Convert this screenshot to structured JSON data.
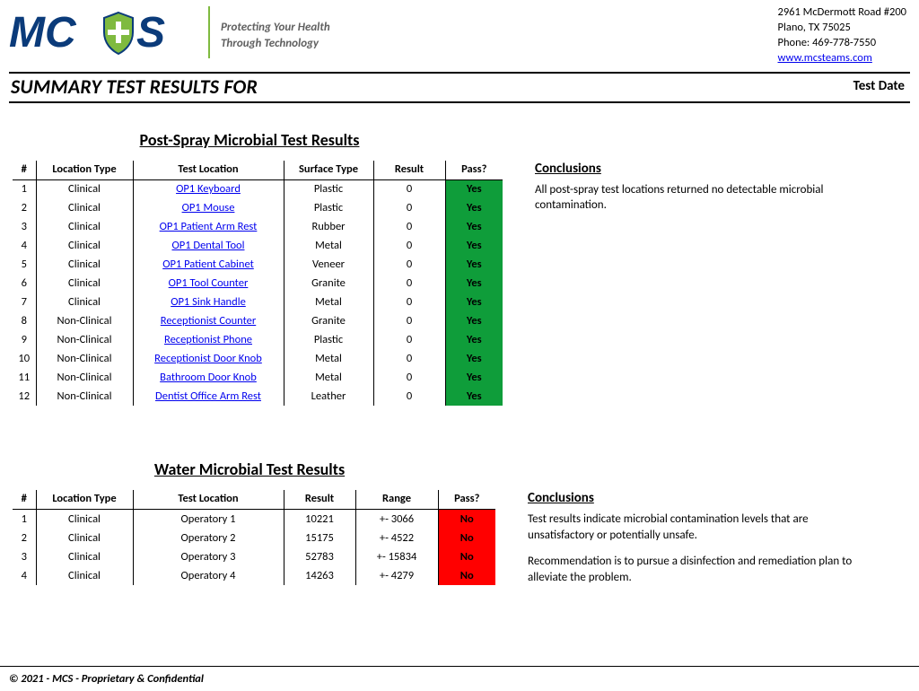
{
  "header": {
    "tagline_line1": "Protecting Your Health",
    "tagline_line2": "Through Technology",
    "address_line1": "2961 McDermott Road  #200",
    "address_line2": "Plano, TX  75025",
    "phone": "Phone: 469-778-7550",
    "website_text": "www.mcsteams.com",
    "website_href": "http://www.mcsteams.com",
    "logo": {
      "text_left": "MC",
      "text_right": "S",
      "main_color": "#0b3b7a",
      "shield_fill": "#7fba3f",
      "cross_color": "#ffffff",
      "rule_color": "#7fba3f"
    }
  },
  "title_bar": {
    "title": "SUMMARY TEST RESULTS FOR",
    "date_label": "Test Date"
  },
  "post_spray": {
    "title": "Post-Spray Microbial Test Results",
    "columns": {
      "n": "#",
      "ltype": "Location Type",
      "loc": "Test Location",
      "surf": "Surface Type",
      "res": "Result",
      "pass": "Pass?"
    },
    "pass_colors": {
      "yes": "#0f9d3a",
      "no": "#ff0000"
    },
    "rows": [
      {
        "n": "1",
        "ltype": "Clinical",
        "loc": "OP1 Keyboard",
        "surf": "Plastic",
        "res": "0",
        "pass": "Yes"
      },
      {
        "n": "2",
        "ltype": "Clinical",
        "loc": "OP1 Mouse",
        "surf": "Plastic",
        "res": "0",
        "pass": "Yes"
      },
      {
        "n": "3",
        "ltype": "Clinical",
        "loc": "OP1 Patient Arm Rest",
        "surf": "Rubber",
        "res": "0",
        "pass": "Yes"
      },
      {
        "n": "4",
        "ltype": "Clinical",
        "loc": "OP1 Dental Tool",
        "surf": "Metal",
        "res": "0",
        "pass": "Yes"
      },
      {
        "n": "5",
        "ltype": "Clinical",
        "loc": "OP1 Patient Cabinet",
        "surf": "Veneer",
        "res": "0",
        "pass": "Yes"
      },
      {
        "n": "6",
        "ltype": "Clinical",
        "loc": "OP1 Tool Counter",
        "surf": "Granite",
        "res": "0",
        "pass": "Yes"
      },
      {
        "n": "7",
        "ltype": "Clinical",
        "loc": "OP1 Sink Handle",
        "surf": "Metal",
        "res": "0",
        "pass": "Yes"
      },
      {
        "n": "8",
        "ltype": "Non-Clinical",
        "loc": "Receptionist Counter",
        "surf": "Granite",
        "res": "0",
        "pass": "Yes"
      },
      {
        "n": "9",
        "ltype": "Non-Clinical",
        "loc": "Receptionist Phone",
        "surf": "Plastic",
        "res": "0",
        "pass": "Yes"
      },
      {
        "n": "10",
        "ltype": "Non-Clinical",
        "loc": "Receptionist Door Knob",
        "surf": "Metal",
        "res": "0",
        "pass": "Yes"
      },
      {
        "n": "11",
        "ltype": "Non-Clinical",
        "loc": "Bathroom Door Knob",
        "surf": "Metal",
        "res": "0",
        "pass": "Yes"
      },
      {
        "n": "12",
        "ltype": "Non-Clinical",
        "loc": "Dentist Office Arm Rest",
        "surf": "Leather",
        "res": "0",
        "pass": "Yes"
      }
    ],
    "conclusions_label": "Conclusions",
    "conclusions": [
      "All post-spray test locations returned no detectable microbial contamination."
    ]
  },
  "water": {
    "title": "Water Microbial Test Results",
    "columns": {
      "n": "#",
      "ltype": "Location Type",
      "loc": "Test Location",
      "res": "Result",
      "range": "Range",
      "pass": "Pass?"
    },
    "pass_colors": {
      "yes": "#0f9d3a",
      "no": "#ff0000"
    },
    "rows": [
      {
        "n": "1",
        "ltype": "Clinical",
        "loc": "Operatory 1",
        "res": "10221",
        "range": "+- 3066",
        "pass": "No"
      },
      {
        "n": "2",
        "ltype": "Clinical",
        "loc": "Operatory 2",
        "res": "15175",
        "range": "+- 4522",
        "pass": "No"
      },
      {
        "n": "3",
        "ltype": "Clinical",
        "loc": "Operatory 3",
        "res": "52783",
        "range": "+- 15834",
        "pass": "No"
      },
      {
        "n": "4",
        "ltype": "Clinical",
        "loc": "Operatory 4",
        "res": "14263",
        "range": "+- 4279",
        "pass": "No"
      }
    ],
    "conclusions_label": "Conclusions",
    "conclusions": [
      "Test results indicate microbial contamination levels that are unsatisfactory or potentially unsafe.",
      "Recommendation is to pursue a disinfection and remediation plan to alleviate the problem."
    ]
  },
  "footer": {
    "text": "© 2021 - MCS - Proprietary & Confidential"
  }
}
